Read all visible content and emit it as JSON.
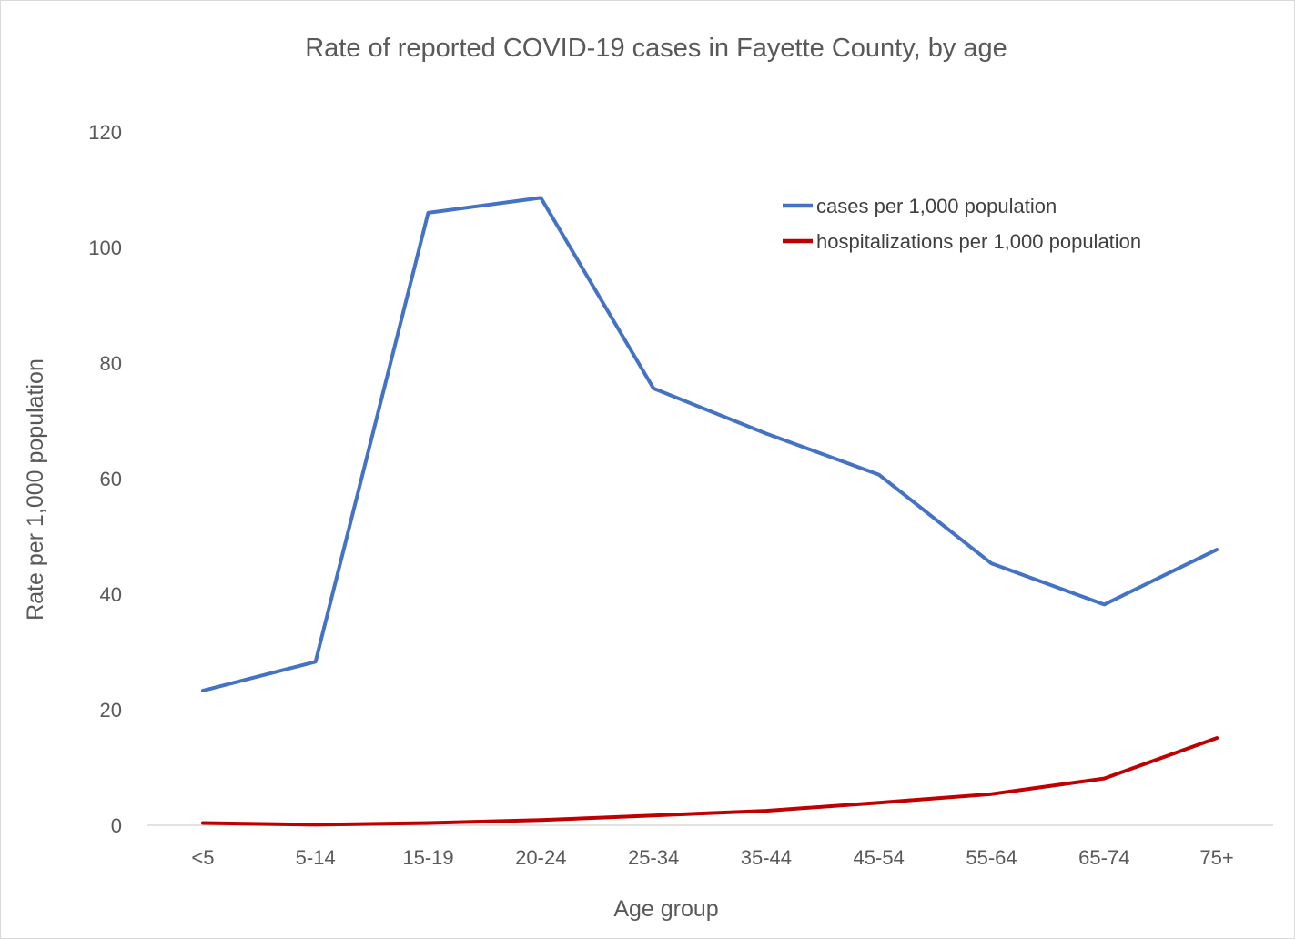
{
  "chart_data": {
    "type": "line",
    "title": "Rate of reported COVID-19 cases in Fayette County, by age",
    "xlabel": "Age group",
    "ylabel": "Rate per 1,000 population",
    "categories": [
      "<5",
      "5-14",
      "15-19",
      "20-24",
      "25-34",
      "35-44",
      "45-54",
      "55-64",
      "65-74",
      "75+"
    ],
    "ylim": [
      0,
      120
    ],
    "yticks": [
      0,
      20,
      40,
      60,
      80,
      100,
      120
    ],
    "grid": false,
    "legend_position": "top-right",
    "series": [
      {
        "name": "cases per 1,000 population",
        "color": "#4472c4",
        "values": [
          23.3,
          28.3,
          106.0,
          108.6,
          75.6,
          67.8,
          60.7,
          45.3,
          38.2,
          47.7
        ]
      },
      {
        "name": "hospitalizations per 1,000 population",
        "color": "#c00000",
        "values": [
          0.4,
          0.1,
          0.4,
          0.9,
          1.7,
          2.5,
          3.9,
          5.4,
          8.1,
          15.1
        ]
      }
    ]
  }
}
